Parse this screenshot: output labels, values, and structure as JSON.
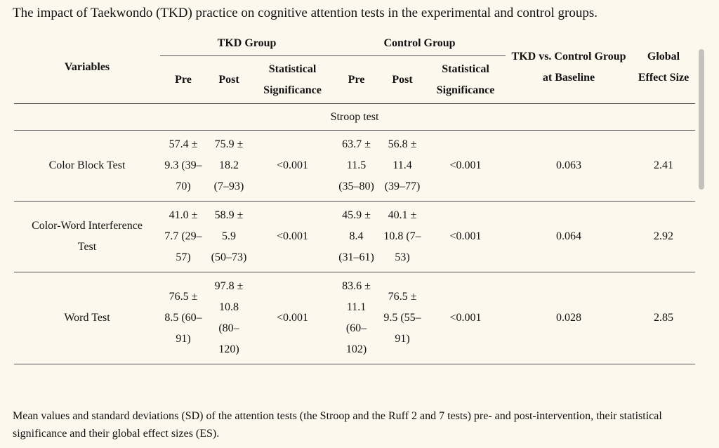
{
  "title": "The impact of Taekwondo (TKD) practice on cognitive attention tests in the experimental and control groups.",
  "table": {
    "header": {
      "variables": "Variables",
      "tkd_group": "TKD Group",
      "control_group": "Control Group",
      "tkd_pre": "Pre",
      "tkd_post": "Post",
      "tkd_significance": "Statistical Significance",
      "control_pre": "Pre",
      "control_post": "Post",
      "control_significance": "Statistical Significance",
      "baseline": "TKD vs. Control Group at Baseline",
      "effect_size": "Global Effect Size"
    },
    "section": "Stroop test",
    "rows": [
      [
        "Color Block Test",
        "57.4 ± 9.3 (39–70)",
        "75.9 ± 18.2 (7–93)",
        "<0.001",
        "63.7 ± 11.5 (35–80)",
        "56.8 ± 11.4 (39–77)",
        "<0.001",
        "0.063",
        "2.41"
      ],
      [
        "Color-Word Interference Test",
        "41.0 ± 7.7 (29–57)",
        "58.9 ± 5.9 (50–73)",
        "<0.001",
        "45.9 ± 8.4 (31–61)",
        "40.1 ± 10.8 (7–53)",
        "<0.001",
        "0.064",
        "2.92"
      ],
      [
        "Word Test",
        "76.5 ± 8.5 (60–91)",
        "97.8 ± 10.8 (80–120)",
        "<0.001",
        "83.6 ± 11.1 (60–102)",
        "76.5 ± 9.5 (55–91)",
        "<0.001",
        "0.028",
        "2.85"
      ]
    ]
  },
  "caption": "Mean values and standard deviations (SD) of the attention tests (the Stroop and the Ruff 2 and 7 tests) pre- and post-intervention, their statistical significance and their global effect sizes (ES)."
}
